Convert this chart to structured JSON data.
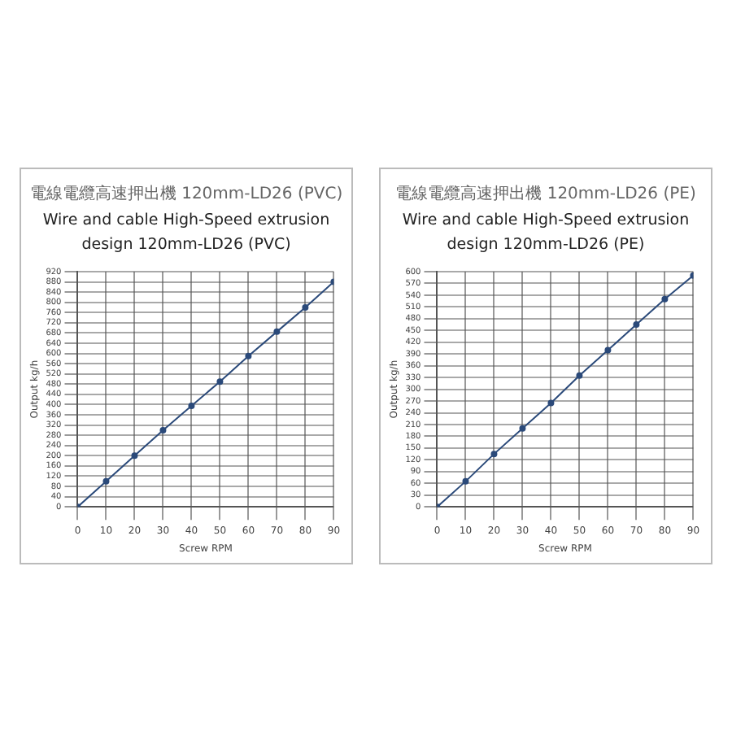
{
  "chart_data": [
    {
      "type": "line",
      "title": "電線電纜高速押出機 120mm-LD26 (PVC)",
      "subtitle": "Wire and cable High-Speed extrusion design 120mm-LD26 (PVC)",
      "xlabel": "Screw RPM",
      "ylabel": "Output kg/h",
      "x": [
        0,
        10,
        20,
        30,
        40,
        50,
        60,
        70,
        80,
        90
      ],
      "series": [
        {
          "color": "#2b4a7a",
          "values": [
            0,
            100,
            200,
            300,
            395,
            490,
            590,
            685,
            780,
            880
          ]
        }
      ],
      "xlim": [
        0,
        90
      ],
      "xticks": [
        0,
        10,
        20,
        30,
        40,
        50,
        60,
        70,
        80,
        90
      ],
      "ylim": [
        0,
        920
      ],
      "yticks": [
        0,
        40,
        80,
        120,
        160,
        200,
        240,
        280,
        320,
        360,
        400,
        440,
        480,
        520,
        560,
        600,
        640,
        680,
        720,
        760,
        800,
        840,
        880,
        920
      ],
      "grid": true,
      "marker": "circle",
      "line_style": "solid",
      "legend": false
    },
    {
      "type": "line",
      "title": "電線電纜高速押出機 120mm-LD26 (PE)",
      "subtitle": "Wire and cable High-Speed extrusion design 120mm-LD26 (PE)",
      "xlabel": "Screw RPM",
      "ylabel": "Output kg/h",
      "x": [
        0,
        10,
        20,
        30,
        40,
        50,
        60,
        70,
        80,
        90
      ],
      "series": [
        {
          "color": "#2b4a7a",
          "values": [
            0,
            65,
            135,
            200,
            265,
            335,
            400,
            465,
            530,
            590
          ]
        }
      ],
      "xlim": [
        0,
        90
      ],
      "xticks": [
        0,
        10,
        20,
        30,
        40,
        50,
        60,
        70,
        80,
        90
      ],
      "ylim": [
        0,
        600
      ],
      "yticks": [
        0,
        30,
        60,
        90,
        120,
        150,
        180,
        210,
        240,
        270,
        300,
        330,
        360,
        390,
        420,
        450,
        480,
        510,
        540,
        570,
        600
      ],
      "grid": true,
      "marker": "circle",
      "line_style": "solid",
      "legend": false
    }
  ]
}
